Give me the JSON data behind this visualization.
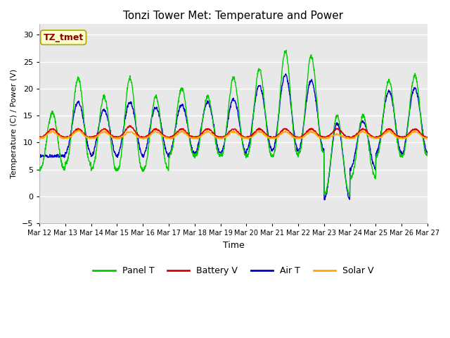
{
  "title": "Tonzi Tower Met: Temperature and Power",
  "xlabel": "Time",
  "ylabel": "Temperature (C) / Power (V)",
  "ylim": [
    -5,
    32
  ],
  "yticks": [
    -5,
    0,
    5,
    10,
    15,
    20,
    25,
    30
  ],
  "plot_bg_color": "#e8e8e8",
  "fig_bg_color": "#ffffff",
  "grid_color": "#ffffff",
  "colors": {
    "panel_t": "#00cc00",
    "battery_v": "#dd0000",
    "air_t": "#0000cc",
    "solar_v": "#ffaa00"
  },
  "legend_labels": [
    "Panel T",
    "Battery V",
    "Air T",
    "Solar V"
  ],
  "annotation_text": "TZ_tmet",
  "annotation_color": "#880000",
  "annotation_bg": "#ffffcc",
  "annotation_edge": "#aaaa00",
  "x_tick_labels": [
    "Mar 12",
    "Mar 13",
    "Mar 14",
    "Mar 15",
    "Mar 16",
    "Mar 17",
    "Mar 18",
    "Mar 19",
    "Mar 20",
    "Mar 21",
    "Mar 22",
    "Mar 23",
    "Mar 24",
    "Mar 25",
    "Mar 26",
    "Mar 27"
  ],
  "n_days": 15,
  "pts_per_day": 96
}
